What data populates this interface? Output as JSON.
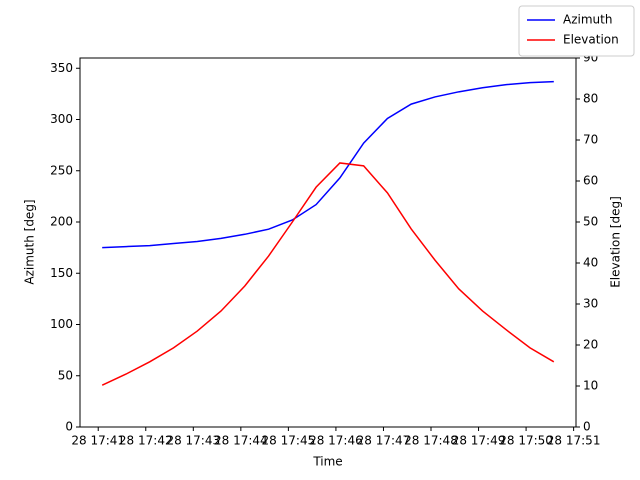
{
  "chart_data": {
    "type": "line",
    "xlabel": "Time",
    "ylabel": "Azimuth [deg]",
    "y2label": "Elevation [deg]",
    "x": [
      "17:41:05",
      "17:41:35",
      "17:42:05",
      "17:42:35",
      "17:43:05",
      "17:43:35",
      "17:44:05",
      "17:44:35",
      "17:45:05",
      "17:45:35",
      "17:46:05",
      "17:46:35",
      "17:47:05",
      "17:47:35",
      "17:48:05",
      "17:48:35",
      "17:49:05",
      "17:49:35",
      "17:50:05",
      "17:50:35"
    ],
    "series": [
      {
        "name": "Azimuth",
        "color": "#0000ff",
        "axis": "y",
        "values": [
          175,
          176,
          177,
          179,
          181,
          184,
          188,
          193,
          202,
          217,
          243,
          277,
          301,
          315,
          322,
          327,
          331,
          334,
          336,
          337
        ]
      },
      {
        "name": "Elevation",
        "color": "#ff0000",
        "axis": "y2",
        "values": [
          10.2,
          12.9,
          15.9,
          19.3,
          23.4,
          28.3,
          34.4,
          41.7,
          50,
          58.5,
          64.4,
          63.7,
          57.1,
          48.3,
          40.7,
          33.7,
          28.3,
          23.7,
          19.3,
          15.9
        ]
      }
    ],
    "xlim": [
      "17:40:37",
      "17:51:03"
    ],
    "xticks": [
      {
        "value": "17:41:00",
        "label": "28 17:41"
      },
      {
        "value": "17:42:00",
        "label": "28 17:42"
      },
      {
        "value": "17:43:00",
        "label": "28 17:43"
      },
      {
        "value": "17:44:00",
        "label": "28 17:44"
      },
      {
        "value": "17:45:00",
        "label": "28 17:45"
      },
      {
        "value": "17:46:00",
        "label": "28 17:46"
      },
      {
        "value": "17:47:00",
        "label": "28 17:47"
      },
      {
        "value": "17:48:00",
        "label": "28 17:48"
      },
      {
        "value": "17:49:00",
        "label": "28 17:49"
      },
      {
        "value": "17:50:00",
        "label": "28 17:50"
      },
      {
        "value": "17:51:00",
        "label": "28 17:51"
      }
    ],
    "ylim": [
      0,
      360
    ],
    "yticks": [
      0,
      50,
      100,
      150,
      200,
      250,
      300,
      350
    ],
    "y2lim": [
      0,
      90
    ],
    "y2ticks": [
      0,
      10,
      20,
      30,
      40,
      50,
      60,
      70,
      80,
      90
    ],
    "legend": "upper right"
  }
}
